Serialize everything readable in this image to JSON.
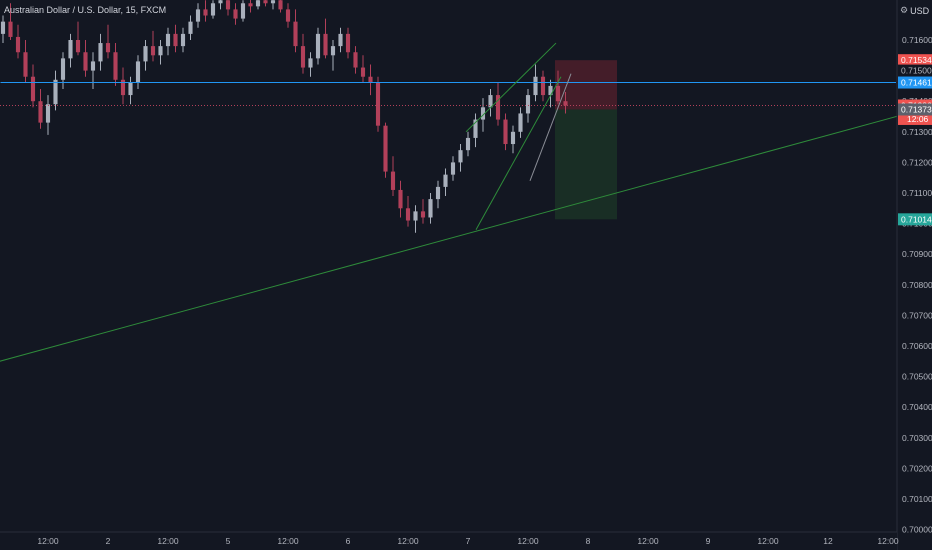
{
  "chart_title": {
    "symbol_desc": "Australian Dollar / U.S. Dollar",
    "interval": "15",
    "exchange": "FXCM"
  },
  "currency_label": "USD",
  "currency_icon": "gear-icon",
  "colors": {
    "background": "#131722",
    "up_candle": "#a9b0bc",
    "down_candle": "#b2405a",
    "horizontal_line": "#2196f3",
    "trendline": "#2e8b3a",
    "current_price_line": "#b2405a",
    "stop_zone": "#4d1f2a",
    "target_zone": "#1b3226",
    "axis_text": "#b2b5be"
  },
  "chart_data": {
    "type": "candlestick",
    "symbol": "AUDUSD",
    "interval": "15",
    "y_axis": {
      "ylim": [
        0.7,
        0.7172
      ],
      "tick_labels": [
        "0.71600",
        "0.71500",
        "0.71400",
        "0.71300",
        "0.71200",
        "0.71100",
        "0.71000",
        "0.70900",
        "0.70800",
        "0.70700",
        "0.70600",
        "0.70500",
        "0.70400",
        "0.70300",
        "0.70200",
        "0.70100",
        "0.70000"
      ],
      "tick_values": [
        0.716,
        0.715,
        0.714,
        0.713,
        0.712,
        0.711,
        0.71,
        0.709,
        0.708,
        0.707,
        0.706,
        0.705,
        0.704,
        0.703,
        0.702,
        0.701,
        0.7
      ]
    },
    "x_axis": {
      "tick_labels": [
        "12:00",
        "2",
        "12:00",
        "5",
        "12:00",
        "6",
        "12:00",
        "7",
        "12:00",
        "8",
        "12:00",
        "9",
        "12:00",
        "12",
        "12:00"
      ],
      "tick_hours": [
        12,
        24,
        36,
        48,
        60,
        72,
        84,
        96,
        108,
        120,
        132,
        144,
        156,
        168,
        180
      ]
    },
    "price_labels": [
      {
        "text": "0.71534",
        "value": 0.71534,
        "kind": "stop"
      },
      {
        "text": "0.71500",
        "value": 0.715,
        "kind": "axis"
      },
      {
        "text": "0.71461",
        "value": 0.71461,
        "kind": "hline"
      },
      {
        "text": "0.71386",
        "value": 0.71386,
        "kind": "last"
      },
      {
        "text": "12:06",
        "value": 0.71342,
        "kind": "countdown"
      },
      {
        "text": "0.71373",
        "value": 0.71373,
        "kind": "entry"
      },
      {
        "text": "0.71014",
        "value": 0.71014,
        "kind": "target"
      }
    ],
    "horizontal_line": {
      "price": 0.71461,
      "x_start_hours": 2.5,
      "x_end_hours": 192
    },
    "long_trendline": {
      "points": [
        [
          -10,
          0.70495
        ],
        [
          192,
          0.71396
        ]
      ]
    },
    "channel_lines": [
      {
        "points": [
          [
            95.6,
            0.713
          ],
          [
            113.6,
            0.7159
          ]
        ]
      },
      {
        "points": [
          [
            97.6,
            0.7098
          ],
          [
            114.6,
            0.7148
          ]
        ]
      }
    ],
    "projection_line": {
      "points": [
        [
          108.4,
          0.7114
        ],
        [
          116.6,
          0.7149
        ]
      ]
    },
    "position": {
      "type": "short",
      "entry": 0.71373,
      "stop": 0.71534,
      "target": 0.71014,
      "x_start_hours": 113.4,
      "x_end_hours": 125.8
    },
    "candles": [
      {
        "o": 0.7167,
        "h": 0.7171,
        "l": 0.7163,
        "c": 0.7165
      },
      {
        "o": 0.7165,
        "h": 0.717,
        "l": 0.716,
        "c": 0.7162
      },
      {
        "o": 0.7162,
        "h": 0.7168,
        "l": 0.7159,
        "c": 0.7166
      },
      {
        "o": 0.7166,
        "h": 0.7172,
        "l": 0.716,
        "c": 0.7161
      },
      {
        "o": 0.7161,
        "h": 0.7165,
        "l": 0.7154,
        "c": 0.7156
      },
      {
        "o": 0.7156,
        "h": 0.716,
        "l": 0.7146,
        "c": 0.7148
      },
      {
        "o": 0.7148,
        "h": 0.7152,
        "l": 0.7138,
        "c": 0.714
      },
      {
        "o": 0.714,
        "h": 0.7144,
        "l": 0.7131,
        "c": 0.7133
      },
      {
        "o": 0.7133,
        "h": 0.7142,
        "l": 0.7129,
        "c": 0.7139
      },
      {
        "o": 0.7139,
        "h": 0.715,
        "l": 0.7137,
        "c": 0.7147
      },
      {
        "o": 0.7147,
        "h": 0.7156,
        "l": 0.7144,
        "c": 0.7154
      },
      {
        "o": 0.7154,
        "h": 0.7162,
        "l": 0.7151,
        "c": 0.716
      },
      {
        "o": 0.716,
        "h": 0.7166,
        "l": 0.7155,
        "c": 0.7156
      },
      {
        "o": 0.7156,
        "h": 0.716,
        "l": 0.7148,
        "c": 0.715
      },
      {
        "o": 0.715,
        "h": 0.7156,
        "l": 0.7144,
        "c": 0.7153
      },
      {
        "o": 0.7153,
        "h": 0.7162,
        "l": 0.715,
        "c": 0.7159
      },
      {
        "o": 0.7159,
        "h": 0.7165,
        "l": 0.7154,
        "c": 0.7156
      },
      {
        "o": 0.7156,
        "h": 0.7159,
        "l": 0.7145,
        "c": 0.7147
      },
      {
        "o": 0.7147,
        "h": 0.7151,
        "l": 0.7139,
        "c": 0.7142
      },
      {
        "o": 0.7142,
        "h": 0.7148,
        "l": 0.7139,
        "c": 0.7146
      },
      {
        "o": 0.7146,
        "h": 0.7155,
        "l": 0.7144,
        "c": 0.7153
      },
      {
        "o": 0.7153,
        "h": 0.716,
        "l": 0.715,
        "c": 0.7158
      },
      {
        "o": 0.7158,
        "h": 0.7163,
        "l": 0.7153,
        "c": 0.7155
      },
      {
        "o": 0.7155,
        "h": 0.716,
        "l": 0.7152,
        "c": 0.7158
      },
      {
        "o": 0.7158,
        "h": 0.7164,
        "l": 0.7155,
        "c": 0.7162
      },
      {
        "o": 0.7162,
        "h": 0.7165,
        "l": 0.7156,
        "c": 0.7158
      },
      {
        "o": 0.7158,
        "h": 0.7164,
        "l": 0.7156,
        "c": 0.7162
      },
      {
        "o": 0.7162,
        "h": 0.7168,
        "l": 0.716,
        "c": 0.7166
      },
      {
        "o": 0.7166,
        "h": 0.7172,
        "l": 0.7164,
        "c": 0.717
      },
      {
        "o": 0.717,
        "h": 0.7173,
        "l": 0.7166,
        "c": 0.7168
      },
      {
        "o": 0.7168,
        "h": 0.7173,
        "l": 0.7167,
        "c": 0.7172
      },
      {
        "o": 0.7172,
        "h": 0.7174,
        "l": 0.717,
        "c": 0.7173
      },
      {
        "o": 0.7173,
        "h": 0.7174,
        "l": 0.7168,
        "c": 0.717
      },
      {
        "o": 0.717,
        "h": 0.7172,
        "l": 0.7165,
        "c": 0.7167
      },
      {
        "o": 0.7167,
        "h": 0.7173,
        "l": 0.7166,
        "c": 0.7172
      },
      {
        "o": 0.7172,
        "h": 0.7174,
        "l": 0.7169,
        "c": 0.7171
      },
      {
        "o": 0.7171,
        "h": 0.7174,
        "l": 0.717,
        "c": 0.7173
      },
      {
        "o": 0.7173,
        "h": 0.7174,
        "l": 0.7171,
        "c": 0.7172
      },
      {
        "o": 0.7172,
        "h": 0.7174,
        "l": 0.717,
        "c": 0.7173
      },
      {
        "o": 0.7173,
        "h": 0.7174,
        "l": 0.7169,
        "c": 0.717
      },
      {
        "o": 0.717,
        "h": 0.7172,
        "l": 0.7164,
        "c": 0.7166
      },
      {
        "o": 0.7166,
        "h": 0.717,
        "l": 0.7156,
        "c": 0.7158
      },
      {
        "o": 0.7158,
        "h": 0.7162,
        "l": 0.7149,
        "c": 0.7151
      },
      {
        "o": 0.7151,
        "h": 0.7156,
        "l": 0.7148,
        "c": 0.7154
      },
      {
        "o": 0.7154,
        "h": 0.7164,
        "l": 0.7152,
        "c": 0.7162
      },
      {
        "o": 0.7162,
        "h": 0.7167,
        "l": 0.7154,
        "c": 0.7155
      },
      {
        "o": 0.7155,
        "h": 0.716,
        "l": 0.715,
        "c": 0.7158
      },
      {
        "o": 0.7158,
        "h": 0.7164,
        "l": 0.7156,
        "c": 0.7162
      },
      {
        "o": 0.7162,
        "h": 0.7164,
        "l": 0.7154,
        "c": 0.7156
      },
      {
        "o": 0.7156,
        "h": 0.7158,
        "l": 0.7149,
        "c": 0.7151
      },
      {
        "o": 0.7151,
        "h": 0.7155,
        "l": 0.7146,
        "c": 0.7148
      },
      {
        "o": 0.7148,
        "h": 0.7152,
        "l": 0.7142,
        "c": 0.7146
      },
      {
        "o": 0.7146,
        "h": 0.7148,
        "l": 0.713,
        "c": 0.7132
      },
      {
        "o": 0.7132,
        "h": 0.7133,
        "l": 0.7115,
        "c": 0.7117
      },
      {
        "o": 0.7117,
        "h": 0.7122,
        "l": 0.7109,
        "c": 0.7111
      },
      {
        "o": 0.7111,
        "h": 0.7114,
        "l": 0.7102,
        "c": 0.7105
      },
      {
        "o": 0.7105,
        "h": 0.7109,
        "l": 0.7099,
        "c": 0.7101
      },
      {
        "o": 0.7101,
        "h": 0.7106,
        "l": 0.7097,
        "c": 0.7104
      },
      {
        "o": 0.7104,
        "h": 0.7108,
        "l": 0.71,
        "c": 0.7102
      },
      {
        "o": 0.7102,
        "h": 0.711,
        "l": 0.71,
        "c": 0.7108
      },
      {
        "o": 0.7108,
        "h": 0.7114,
        "l": 0.7105,
        "c": 0.7112
      },
      {
        "o": 0.7112,
        "h": 0.7118,
        "l": 0.7109,
        "c": 0.7116
      },
      {
        "o": 0.7116,
        "h": 0.7122,
        "l": 0.7114,
        "c": 0.712
      },
      {
        "o": 0.712,
        "h": 0.7126,
        "l": 0.7117,
        "c": 0.7124
      },
      {
        "o": 0.7124,
        "h": 0.713,
        "l": 0.7122,
        "c": 0.7128
      },
      {
        "o": 0.7128,
        "h": 0.7136,
        "l": 0.7125,
        "c": 0.7134
      },
      {
        "o": 0.7134,
        "h": 0.7141,
        "l": 0.713,
        "c": 0.7138
      },
      {
        "o": 0.7138,
        "h": 0.7144,
        "l": 0.7135,
        "c": 0.7142
      },
      {
        "o": 0.7142,
        "h": 0.7146,
        "l": 0.7132,
        "c": 0.7134
      },
      {
        "o": 0.7134,
        "h": 0.7136,
        "l": 0.7124,
        "c": 0.7126
      },
      {
        "o": 0.7126,
        "h": 0.7132,
        "l": 0.7123,
        "c": 0.713
      },
      {
        "o": 0.713,
        "h": 0.7138,
        "l": 0.7128,
        "c": 0.7136
      },
      {
        "o": 0.7136,
        "h": 0.7144,
        "l": 0.7133,
        "c": 0.7142
      },
      {
        "o": 0.7142,
        "h": 0.7152,
        "l": 0.714,
        "c": 0.7148
      },
      {
        "o": 0.7148,
        "h": 0.715,
        "l": 0.714,
        "c": 0.7142
      },
      {
        "o": 0.7142,
        "h": 0.7147,
        "l": 0.7138,
        "c": 0.7145
      },
      {
        "o": 0.7145,
        "h": 0.715,
        "l": 0.7139,
        "c": 0.714
      },
      {
        "o": 0.714,
        "h": 0.7143,
        "l": 0.7136,
        "c": 0.71386
      }
    ],
    "candle_start_hours": 0,
    "candle_step_hours": 1.5
  }
}
